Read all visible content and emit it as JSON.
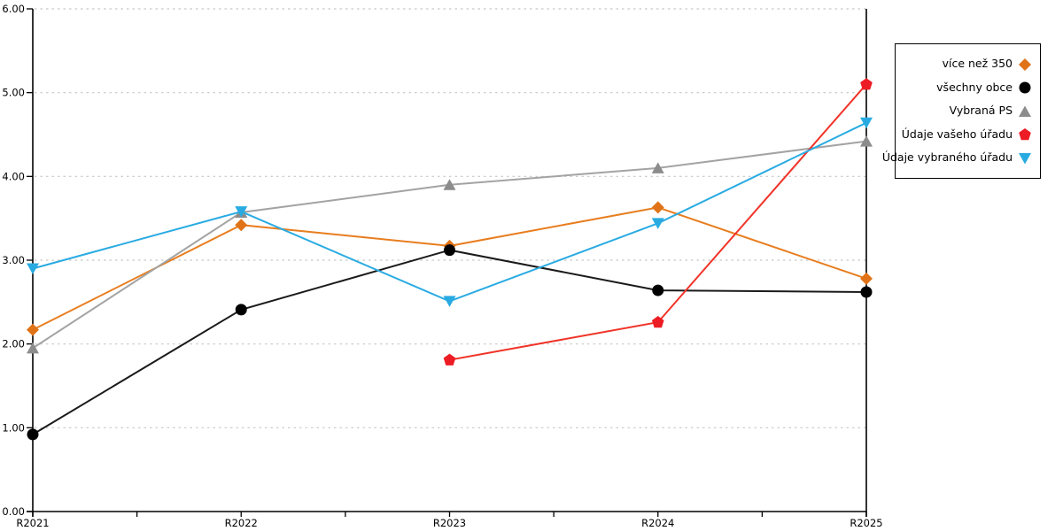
{
  "chart_data": {
    "type": "line",
    "title": "",
    "xlabel": "",
    "ylabel": "",
    "categories": [
      "R2021",
      "R2022",
      "R2023",
      "R2024",
      "R2025"
    ],
    "ylim": [
      0,
      6
    ],
    "ytick_step": 1,
    "y_tick_labels": [
      "0.00",
      "1.00",
      "2.00",
      "3.00",
      "4.00",
      "5.00",
      "6.00"
    ],
    "grid": "horizontal-dotted",
    "legend_position": "outside-right-top",
    "series": [
      {
        "name": "více než 350",
        "marker": "diamond",
        "color": "#E87D1E",
        "marker_color": "#E07318",
        "values": [
          2.17,
          3.42,
          3.17,
          3.63,
          2.78
        ]
      },
      {
        "name": "všechny obce",
        "marker": "circle",
        "color": "#1A1A1A",
        "marker_color": "#000000",
        "values": [
          0.92,
          2.41,
          3.12,
          2.64,
          2.62
        ]
      },
      {
        "name": "Vybraná PS",
        "marker": "triangle-up",
        "color": "#A3A3A3",
        "marker_color": "#8C8C8C",
        "values": [
          1.95,
          3.57,
          3.9,
          4.1,
          4.42
        ]
      },
      {
        "name": "Údaje vašeho úřadu",
        "marker": "pentagon",
        "color": "#F03428",
        "marker_color": "#ED1C24",
        "values": [
          null,
          null,
          1.81,
          2.26,
          5.1
        ]
      },
      {
        "name": "Údaje vybraného úřadu",
        "marker": "triangle-down",
        "color": "#29ABE2",
        "marker_color": "#29ABE2",
        "values": [
          2.9,
          3.58,
          2.51,
          3.44,
          4.64
        ]
      }
    ],
    "colors": {
      "gridline": "#C8C8C8",
      "axis": "#000000",
      "background": "#FFFFFF"
    }
  }
}
